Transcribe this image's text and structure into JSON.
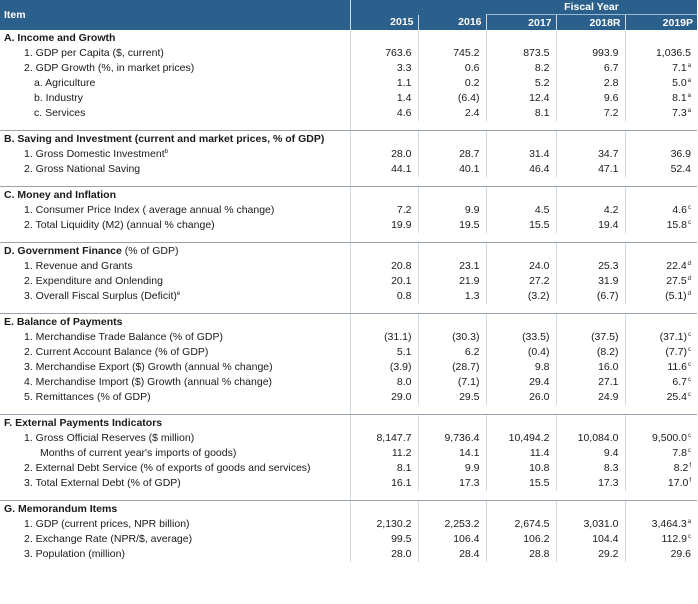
{
  "header": {
    "item_label": "Item",
    "fiscal_year_label": "Fiscal Year",
    "years": [
      "2015",
      "2016",
      "2017",
      "2018R",
      "2019P"
    ]
  },
  "sections": [
    {
      "title": "A. Income and Growth",
      "rows": [
        {
          "label": "1.  GDP per Capita ($, current)",
          "level": 1,
          "values": [
            "763.6",
            "745.2",
            "873.5",
            "993.9",
            "1,036.5"
          ],
          "notes": [
            "",
            "",
            "",
            "",
            ""
          ]
        },
        {
          "label": "2.  GDP Growth (%, in market prices)",
          "level": 1,
          "values": [
            "3.3",
            "0.6",
            "8.2",
            "6.7",
            "7.1"
          ],
          "notes": [
            "",
            "",
            "",
            "",
            "a"
          ]
        },
        {
          "label": "a. Agriculture",
          "level": 2,
          "values": [
            "1.1",
            "0.2",
            "5.2",
            "2.8",
            "5.0"
          ],
          "notes": [
            "",
            "",
            "",
            "",
            "a"
          ]
        },
        {
          "label": "b. Industry",
          "level": 2,
          "values": [
            "1.4",
            "(6.4)",
            "12.4",
            "9.6",
            "8.1"
          ],
          "notes": [
            "",
            "",
            "",
            "",
            "a"
          ]
        },
        {
          "label": "c. Services",
          "level": 2,
          "values": [
            "4.6",
            "2.4",
            "8.1",
            "7.2",
            "7.3"
          ],
          "notes": [
            "",
            "",
            "",
            "",
            "a"
          ]
        }
      ]
    },
    {
      "title": "B. Saving and Investment (current and market prices, % of GDP)",
      "rows": [
        {
          "label": "1.  Gross Domestic Investment",
          "label_note": "b",
          "level": 1,
          "values": [
            "28.0",
            "28.7",
            "31.4",
            "34.7",
            "36.9"
          ],
          "notes": [
            "",
            "",
            "",
            "",
            ""
          ]
        },
        {
          "label": "2.  Gross National Saving",
          "level": 1,
          "values": [
            "44.1",
            "40.1",
            "46.4",
            "47.1",
            "52.4"
          ],
          "notes": [
            "",
            "",
            "",
            "",
            ""
          ]
        }
      ]
    },
    {
      "title": "C. Money and Inflation",
      "rows": [
        {
          "label": "1.  Consumer Price Index ( average annual % change)",
          "level": 1,
          "values": [
            "7.2",
            "9.9",
            "4.5",
            "4.2",
            "4.6"
          ],
          "notes": [
            "",
            "",
            "",
            "",
            "c"
          ]
        },
        {
          "label": "2.  Total Liquidity (M2) (annual % change)",
          "level": 1,
          "values": [
            "19.9",
            "19.5",
            "15.5",
            "19.4",
            "15.8"
          ],
          "notes": [
            "",
            "",
            "",
            "",
            "c"
          ]
        }
      ]
    },
    {
      "title": "D. Government Finance",
      "title_suffix": " (% of GDP)",
      "rows": [
        {
          "label": "1.  Revenue and Grants",
          "level": 1,
          "values": [
            "20.8",
            "23.1",
            "24.0",
            "25.3",
            "22.4"
          ],
          "notes": [
            "",
            "",
            "",
            "",
            "d"
          ]
        },
        {
          "label": "2.  Expenditure and Onlending",
          "level": 1,
          "values": [
            "20.1",
            "21.9",
            "27.2",
            "31.9",
            "27.5"
          ],
          "notes": [
            "",
            "",
            "",
            "",
            "d"
          ]
        },
        {
          "label": "3.  Overall Fiscal Surplus (Deficit)",
          "label_note": "e",
          "level": 1,
          "values": [
            "0.8",
            "1.3",
            "(3.2)",
            "(6.7)",
            "(5.1)"
          ],
          "notes": [
            "",
            "",
            "",
            "",
            "d"
          ]
        }
      ]
    },
    {
      "title": "E. Balance of Payments",
      "rows": [
        {
          "label": "1.  Merchandise Trade Balance (% of GDP)",
          "level": 1,
          "values": [
            "(31.1)",
            "(30.3)",
            "(33.5)",
            "(37.5)",
            "(37.1)"
          ],
          "notes": [
            "",
            "",
            "",
            "",
            "c"
          ]
        },
        {
          "label": "2.  Current Account Balance (% of GDP)",
          "level": 1,
          "values": [
            "5.1",
            "6.2",
            "(0.4)",
            "(8.2)",
            "(7.7)"
          ],
          "notes": [
            "",
            "",
            "",
            "",
            "c"
          ]
        },
        {
          "label": "3.  Merchandise Export ($) Growth (annual % change)",
          "level": 1,
          "values": [
            "(3.9)",
            "(28.7)",
            "9.8",
            "16.0",
            "11.6"
          ],
          "notes": [
            "",
            "",
            "",
            "",
            "c"
          ]
        },
        {
          "label": "4.  Merchandise Import ($) Growth (annual % change)",
          "level": 1,
          "values": [
            "8.0",
            "(7.1)",
            "29.4",
            "27.1",
            "6.7"
          ],
          "notes": [
            "",
            "",
            "",
            "",
            "c"
          ]
        },
        {
          "label": "5.  Remittances (% of GDP)",
          "level": 1,
          "values": [
            "29.0",
            "29.5",
            "26.0",
            "24.9",
            "25.4"
          ],
          "notes": [
            "",
            "",
            "",
            "",
            "c"
          ]
        }
      ]
    },
    {
      "title": "F. External Payments Indicators",
      "rows": [
        {
          "label": "1.  Gross Official Reserves ($ million)",
          "level": 1,
          "values": [
            "8,147.7",
            "9,736.4",
            "10,494.2",
            "10,084.0",
            "9,500.0"
          ],
          "notes": [
            "",
            "",
            "",
            "",
            "c"
          ]
        },
        {
          "label": "Months of current year's imports of goods)",
          "level": 3,
          "values": [
            "11.2",
            "14.1",
            "11.4",
            "9.4",
            "7.8"
          ],
          "notes": [
            "",
            "",
            "",
            "",
            "c"
          ]
        },
        {
          "label": "2.  External Debt Service (% of exports of goods and services)",
          "level": 1,
          "values": [
            "8.1",
            "9.9",
            "10.8",
            "8.3",
            "8.2"
          ],
          "notes": [
            "",
            "",
            "",
            "",
            "f"
          ]
        },
        {
          "label": "3.  Total External Debt (% of GDP)",
          "level": 1,
          "values": [
            "16.1",
            "17.3",
            "15.5",
            "17.3",
            "17.0"
          ],
          "notes": [
            "",
            "",
            "",
            "",
            "f"
          ]
        }
      ]
    },
    {
      "title": "G. Memorandum Items",
      "rows": [
        {
          "label": "1.  GDP (current prices, NPR billion)",
          "level": 1,
          "values": [
            "2,130.2",
            "2,253.2",
            "2,674.5",
            "3,031.0",
            "3,464.3"
          ],
          "notes": [
            "",
            "",
            "",
            "",
            "a"
          ]
        },
        {
          "label": "2.  Exchange Rate (NPR/$, average)",
          "level": 1,
          "values": [
            "99.5",
            "106.4",
            "106.2",
            "104.4",
            "112.9"
          ],
          "notes": [
            "",
            "",
            "",
            "",
            "c"
          ]
        },
        {
          "label": "3.  Population (million)",
          "level": 1,
          "values": [
            "28.0",
            "28.4",
            "28.8",
            "29.2",
            "29.6"
          ],
          "notes": [
            "",
            "",
            "",
            "",
            ""
          ]
        }
      ]
    }
  ]
}
